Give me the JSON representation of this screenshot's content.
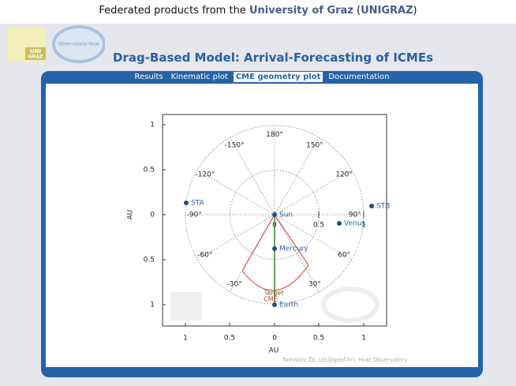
{
  "header": {
    "prefix": "Federated products from the",
    "university": "University of Graz",
    "open": "(",
    "code": "UNIGRAZ",
    "close": ")"
  },
  "logos": {
    "uni": "UNI",
    "graz": "GRAZ",
    "observatory": "Observatory Hvar"
  },
  "title": "Drag-Based Model: Arrival-Forecasting of ICMEs",
  "tabs": [
    "Results",
    "Kinematic plot",
    "CME geometry plot",
    "Documentation"
  ],
  "plot": {
    "xlabel": "AU",
    "ylabel": "AU",
    "xticks": [
      "1",
      "0.5",
      "0",
      "0.5",
      "1"
    ],
    "yticks": [
      "1",
      "0.5",
      "0",
      "0.5",
      "1"
    ],
    "angles": [
      "180°",
      "150°",
      "-150°",
      "120°",
      "-120°",
      "90°",
      "-90°",
      "60°",
      "-60°",
      "30°",
      "-30°"
    ],
    "inner_ticks": [
      "0",
      "0.5",
      "1"
    ],
    "objects": [
      "Sun",
      "Mercury",
      "Venus",
      "Earth",
      "STA",
      "STB"
    ],
    "target": "Target",
    "cme": "CME"
  },
  "credit": "Tomislav Žic (zic@geof.hr), Hvar Observatory"
}
